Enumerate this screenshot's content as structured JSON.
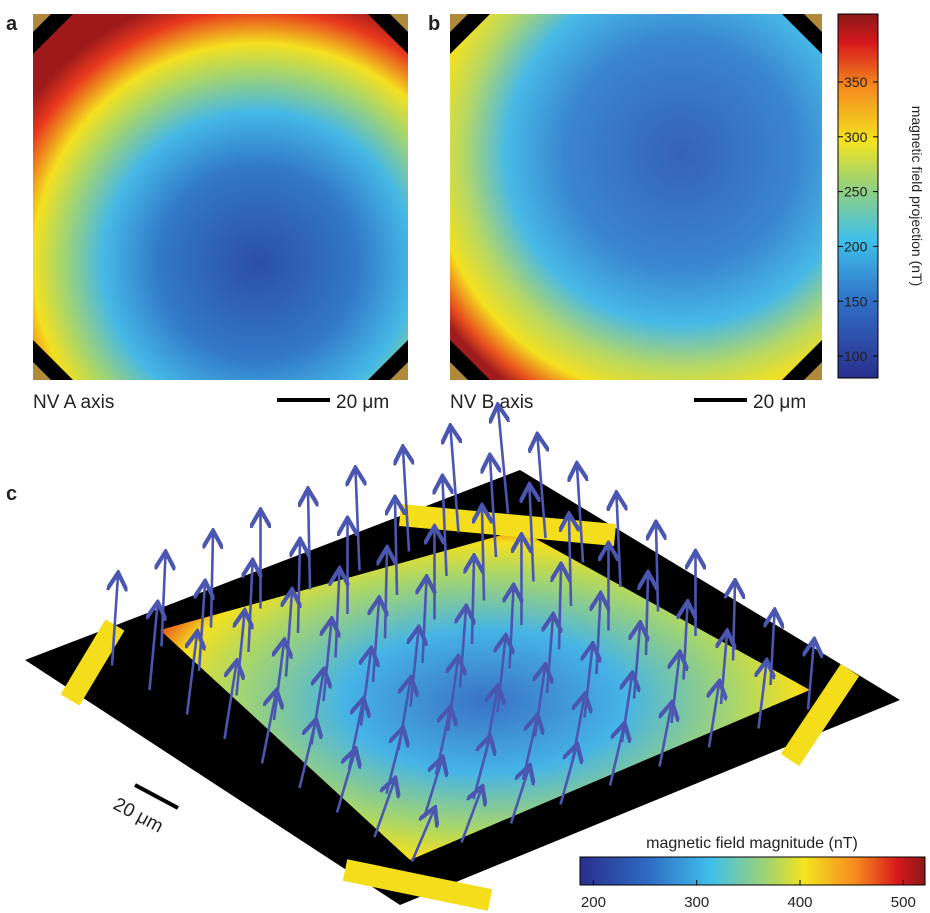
{
  "panels": [
    {
      "letter": "a",
      "caption": "NV A axis",
      "scale_bar": "20 μm"
    },
    {
      "letter": "b",
      "caption": "NV B axis",
      "scale_bar": "20 μm"
    },
    {
      "letter": "c",
      "scale_bar": "20 μm"
    }
  ],
  "colorbar_projection": {
    "label": "magnetic field projection (nT)",
    "range": [
      80,
      412
    ],
    "ticks": [
      100,
      150,
      200,
      250,
      300,
      350
    ]
  },
  "colorbar_magnitude": {
    "label": "magnetic field magnitude (nT)",
    "range": [
      187,
      521
    ],
    "ticks": [
      200,
      300,
      400,
      500
    ]
  }
}
